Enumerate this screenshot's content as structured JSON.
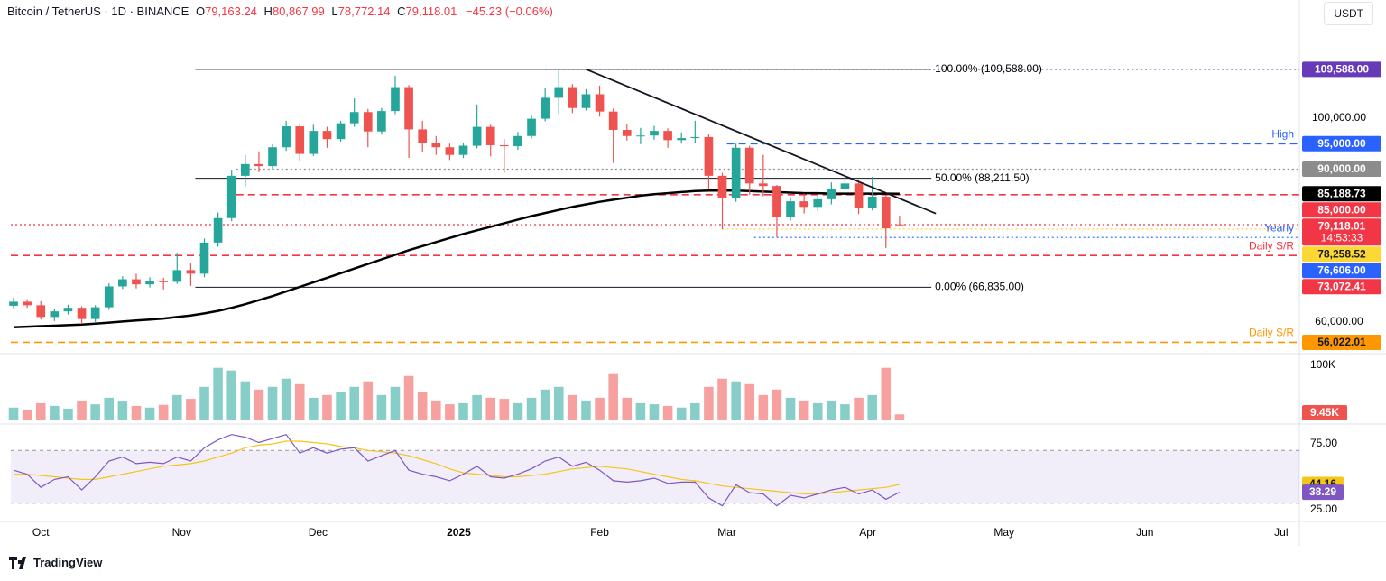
{
  "header": {
    "symbol": "Bitcoin / TetherUS · 1D · BINANCE",
    "ohlc": [
      {
        "key": "O",
        "value": "79,163.24"
      },
      {
        "key": "H",
        "value": "80,867.99"
      },
      {
        "key": "L",
        "value": "78,772.14"
      },
      {
        "key": "C",
        "value": "79,118.01"
      }
    ],
    "change": "−45.23 (−0.06%)"
  },
  "currency": "USDT",
  "branding": "TradingView",
  "chart_data": {
    "type": "candlestick",
    "x": [
      -6,
      -3,
      0,
      3,
      6,
      9,
      12,
      15,
      18,
      21,
      24,
      27,
      30,
      33,
      36,
      39,
      42,
      45,
      48,
      51,
      54,
      57,
      60,
      63,
      66,
      69,
      72,
      75,
      78,
      81,
      84,
      87,
      90,
      93,
      96,
      99,
      102,
      105,
      108,
      111,
      114,
      117,
      120,
      123,
      126,
      129,
      132,
      135,
      138,
      141,
      144,
      147,
      150,
      153,
      156,
      159,
      162,
      165,
      168,
      171,
      174,
      177,
      180,
      183,
      186,
      189
    ],
    "xlim": [
      -6.6,
      277
    ],
    "xticks": [
      {
        "value": 0,
        "label": "Oct"
      },
      {
        "value": 31,
        "label": "Nov"
      },
      {
        "value": 61,
        "label": "Dec"
      },
      {
        "value": 92,
        "label": "2025"
      },
      {
        "value": 123,
        "label": "Feb"
      },
      {
        "value": 151,
        "label": "Mar"
      },
      {
        "value": 182,
        "label": "Apr"
      },
      {
        "value": 212,
        "label": "May"
      },
      {
        "value": 243,
        "label": "Jun"
      },
      {
        "value": 273,
        "label": "Jul"
      }
    ],
    "candles": [
      [
        63200,
        64800,
        62700,
        64000
      ],
      [
        64000,
        64500,
        62800,
        63300
      ],
      [
        63300,
        64100,
        60500,
        61000
      ],
      [
        61000,
        62600,
        60200,
        62100
      ],
      [
        62100,
        63400,
        61500,
        62800
      ],
      [
        62800,
        63100,
        59800,
        60600
      ],
      [
        60600,
        63300,
        60000,
        62900
      ],
      [
        62900,
        67600,
        62400,
        67000
      ],
      [
        67000,
        69000,
        66500,
        68400
      ],
      [
        68400,
        69500,
        66600,
        67400
      ],
      [
        67400,
        68800,
        66800,
        68000
      ],
      [
        68000,
        68700,
        66400,
        67900
      ],
      [
        67900,
        73600,
        67500,
        70200
      ],
      [
        70200,
        71500,
        67100,
        69500
      ],
      [
        69500,
        76400,
        68800,
        75600
      ],
      [
        75600,
        81500,
        74800,
        80400
      ],
      [
        80400,
        89900,
        79800,
        88700
      ],
      [
        88700,
        92800,
        86600,
        91000
      ],
      [
        91000,
        93500,
        89400,
        90600
      ],
      [
        90600,
        94900,
        89900,
        94300
      ],
      [
        94300,
        99500,
        93600,
        98400
      ],
      [
        98400,
        98900,
        91500,
        93000
      ],
      [
        93000,
        98700,
        92600,
        97500
      ],
      [
        97500,
        98300,
        94200,
        95900
      ],
      [
        95900,
        99500,
        95400,
        99000
      ],
      [
        99000,
        103900,
        98300,
        101200
      ],
      [
        101200,
        101800,
        94300,
        97400
      ],
      [
        97400,
        102000,
        96800,
        101400
      ],
      [
        101400,
        108300,
        100800,
        106100
      ],
      [
        106100,
        106500,
        92200,
        97800
      ],
      [
        97800,
        99500,
        93400,
        95200
      ],
      [
        95200,
        96500,
        92800,
        94300
      ],
      [
        94300,
        95000,
        91800,
        92800
      ],
      [
        92800,
        95100,
        92200,
        94600
      ],
      [
        94600,
        102700,
        94100,
        98300
      ],
      [
        98300,
        98700,
        92500,
        94700
      ],
      [
        94700,
        95900,
        89300,
        94500
      ],
      [
        94500,
        97300,
        93800,
        96500
      ],
      [
        96500,
        100700,
        96000,
        99900
      ],
      [
        99900,
        105900,
        99400,
        104000
      ],
      [
        104000,
        109588,
        100800,
        106100
      ],
      [
        106100,
        106700,
        101000,
        102000
      ],
      [
        102000,
        105700,
        101500,
        104700
      ],
      [
        104700,
        106400,
        100300,
        101300
      ],
      [
        101300,
        101900,
        91200,
        97700
      ],
      [
        97700,
        98800,
        95600,
        96500
      ],
      [
        96500,
        98100,
        94900,
        96600
      ],
      [
        96600,
        98500,
        95800,
        97500
      ],
      [
        97500,
        98000,
        94200,
        95700
      ],
      [
        95700,
        97200,
        95000,
        96100
      ],
      [
        96100,
        99500,
        95200,
        96300
      ],
      [
        96300,
        96800,
        86100,
        88700
      ],
      [
        88700,
        89300,
        78200,
        84400
      ],
      [
        84400,
        95000,
        83600,
        94200
      ],
      [
        94200,
        94600,
        85000,
        87200
      ],
      [
        87200,
        92800,
        84700,
        86700
      ],
      [
        86700,
        86900,
        76600,
        80700
      ],
      [
        80700,
        84500,
        79900,
        83700
      ],
      [
        83700,
        85200,
        81300,
        82600
      ],
      [
        82600,
        84800,
        81800,
        84100
      ],
      [
        84100,
        87400,
        83100,
        86100
      ],
      [
        86100,
        88700,
        85800,
        87200
      ],
      [
        87200,
        87900,
        81200,
        82300
      ],
      [
        82300,
        88500,
        81900,
        84600
      ],
      [
        84600,
        84900,
        74500,
        78400
      ],
      [
        79163.24,
        80867.99,
        78772.14,
        79118.01
      ]
    ],
    "up_color": "#26a69a",
    "down_color": "#ef5350",
    "ylim": [
      54160,
      119650
    ],
    "yticks": [
      {
        "value": 100000,
        "label": "100,000.00"
      },
      {
        "value": 60000,
        "label": "60,000.00"
      }
    ],
    "ma200": [
      59000,
      59100,
      59200,
      59300,
      59400,
      59500,
      59700,
      59900,
      60100,
      60300,
      60500,
      60700,
      61000,
      61300,
      61700,
      62200,
      62800,
      63500,
      64300,
      65100,
      66000,
      66900,
      67800,
      68700,
      69600,
      70500,
      71400,
      72300,
      73200,
      74100,
      74900,
      75700,
      76500,
      77300,
      78000,
      78700,
      79400,
      80100,
      80800,
      81400,
      82000,
      82600,
      83100,
      83600,
      84000,
      84400,
      84800,
      85100,
      85300,
      85500,
      85700,
      85800,
      85800,
      85800,
      85700,
      85600,
      85500,
      85400,
      85300,
      85300,
      85200,
      85200,
      85200,
      85200,
      85200,
      85188.73
    ],
    "trendline": {
      "x": [
        120,
        197
      ],
      "values": [
        109588,
        81300
      ]
    },
    "fib": [
      {
        "value": 109588,
        "label": "100.00% (109,588.00)"
      },
      {
        "value": 88211.5,
        "label": "50.00% (88,211.50)"
      },
      {
        "value": 66835,
        "label": "0.00% (66,835.00)"
      }
    ],
    "levels": [
      {
        "value": 109588,
        "label": "109,588.00",
        "color": "#673ab7",
        "style": "dotted"
      },
      {
        "value": 95000,
        "label": "95,000.00",
        "color": "#2962ff",
        "style": "dashed",
        "note": "High"
      },
      {
        "value": 90000,
        "label": "90,000.00",
        "color": "#8c8c8c",
        "style": "dotted"
      },
      {
        "value": 85188.73,
        "label": "85,188.73",
        "color": "#000000",
        "style": "none"
      },
      {
        "value": 85000,
        "label": "85,000.00",
        "color": "#f23645",
        "style": "dashed"
      },
      {
        "value": 79118.01,
        "label": "79,118.01",
        "sub": "14:53:33",
        "color": "#f23645",
        "style": "dotted"
      },
      {
        "value": 78258.52,
        "label": "78,258.52",
        "color": "#fdd835",
        "style": "dotted"
      },
      {
        "value": 76606,
        "label": "76,606.00",
        "color": "#2962ff",
        "style": "dotted",
        "note": "Yearly"
      },
      {
        "value": 73072.41,
        "label": "73,072.41",
        "color": "#f23645",
        "style": "dashed",
        "note": "Daily S/R"
      },
      {
        "value": 56022.01,
        "label": "56,022.01",
        "color": "#ff9800",
        "style": "dashed",
        "note": "Daily S/R"
      }
    ],
    "volume": {
      "values": [
        22000,
        18000,
        30000,
        25000,
        20000,
        35000,
        28000,
        40000,
        33000,
        25000,
        22000,
        27000,
        45000,
        38000,
        60000,
        95000,
        90000,
        70000,
        55000,
        60000,
        75000,
        65000,
        40000,
        45000,
        50000,
        60000,
        70000,
        45000,
        60000,
        80000,
        50000,
        35000,
        28000,
        30000,
        45000,
        40000,
        38000,
        30000,
        40000,
        55000,
        60000,
        45000,
        35000,
        40000,
        85000,
        40000,
        30000,
        28000,
        25000,
        22000,
        30000,
        60000,
        75000,
        70000,
        65000,
        45000,
        55000,
        40000,
        35000,
        30000,
        35000,
        28000,
        40000,
        45000,
        95000,
        9450
      ],
      "ylim": [
        0,
        116000
      ],
      "yticks": [
        {
          "value": 100000,
          "label": "100K"
        }
      ],
      "last_label": "9.45K"
    },
    "rsi": {
      "values": [
        55,
        52,
        42,
        48,
        50,
        40,
        50,
        62,
        65,
        60,
        61,
        60,
        65,
        62,
        72,
        78,
        82,
        80,
        76,
        79,
        82,
        68,
        72,
        68,
        71,
        72,
        62,
        66,
        70,
        55,
        52,
        50,
        47,
        52,
        58,
        50,
        49,
        52,
        56,
        62,
        65,
        58,
        61,
        55,
        47,
        46,
        47,
        49,
        45,
        46,
        46,
        34,
        28,
        44,
        38,
        37,
        28,
        36,
        34,
        37,
        40,
        42,
        37,
        40,
        33,
        38.29
      ],
      "ma": [
        52,
        52,
        51,
        50,
        49,
        48,
        48,
        50,
        52,
        54,
        56,
        58,
        59,
        60,
        62,
        65,
        68,
        72,
        74,
        75,
        77,
        77,
        76,
        75,
        73,
        72,
        70,
        69,
        68,
        66,
        63,
        60,
        56,
        53,
        52,
        51,
        50,
        50,
        51,
        52,
        54,
        56,
        57,
        58,
        57,
        56,
        54,
        52,
        50,
        48,
        47,
        45,
        43,
        42,
        41,
        40,
        39,
        38,
        37,
        37,
        38,
        39,
        40,
        41,
        42,
        44.16
      ],
      "color": "#7e57c2",
      "ma_color": "#f5c518",
      "ylim": [
        18.2,
        86.6
      ],
      "yticks": [
        {
          "value": 75,
          "label": "75.00"
        },
        {
          "value": 25,
          "label": "25.00"
        }
      ],
      "band": [
        30,
        70
      ]
    }
  }
}
